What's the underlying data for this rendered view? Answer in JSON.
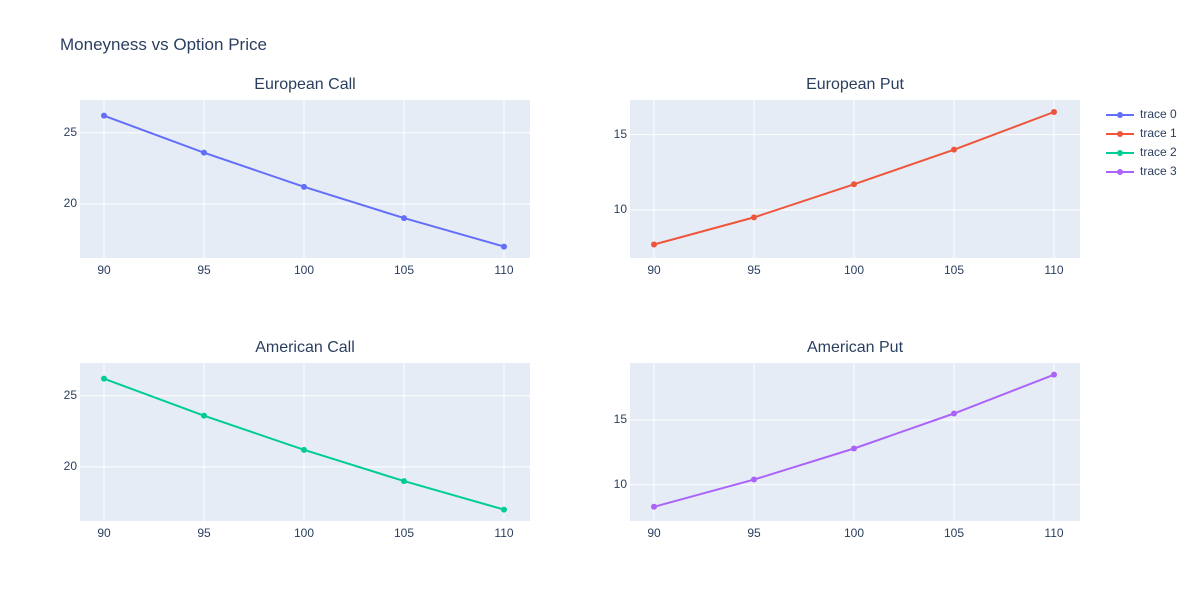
{
  "chart_data": {
    "title": "Moneyness vs Option Price",
    "type": "line",
    "legend_position": "top-right",
    "grid": true,
    "legend": [
      {
        "name": "trace 0",
        "color": "#636efa"
      },
      {
        "name": "trace 1",
        "color": "#ef553b"
      },
      {
        "name": "trace 2",
        "color": "#00cc96"
      },
      {
        "name": "trace 3",
        "color": "#ab63fa"
      }
    ],
    "subplots": [
      {
        "title": "European Call",
        "series": [
          {
            "name": "trace 0",
            "color": "#636efa",
            "x": [
              90,
              95,
              100,
              105,
              110
            ],
            "y": [
              26.2,
              23.6,
              21.2,
              19.0,
              17.0
            ]
          }
        ],
        "xlim": [
          88.8,
          111.3
        ],
        "ylim": [
          16.2,
          27.3
        ],
        "xticks": [
          90,
          95,
          100,
          105,
          110
        ],
        "yticks": [
          20,
          25
        ]
      },
      {
        "title": "European Put",
        "series": [
          {
            "name": "trace 1",
            "color": "#ef553b",
            "x": [
              90,
              95,
              100,
              105,
              110
            ],
            "y": [
              7.7,
              9.5,
              11.7,
              14.0,
              16.5
            ]
          }
        ],
        "xlim": [
          88.8,
          111.3
        ],
        "ylim": [
          6.8,
          17.3
        ],
        "xticks": [
          90,
          95,
          100,
          105,
          110
        ],
        "yticks": [
          10,
          15
        ]
      },
      {
        "title": "American Call",
        "series": [
          {
            "name": "trace 2",
            "color": "#00cc96",
            "x": [
              90,
              95,
              100,
              105,
              110
            ],
            "y": [
              26.2,
              23.6,
              21.2,
              19.0,
              17.0
            ]
          }
        ],
        "xlim": [
          88.8,
          111.3
        ],
        "ylim": [
          16.2,
          27.3
        ],
        "xticks": [
          90,
          95,
          100,
          105,
          110
        ],
        "yticks": [
          20,
          25
        ]
      },
      {
        "title": "American Put",
        "series": [
          {
            "name": "trace 3",
            "color": "#ab63fa",
            "x": [
              90,
              95,
              100,
              105,
              110
            ],
            "y": [
              8.3,
              10.4,
              12.8,
              15.5,
              18.5
            ]
          }
        ],
        "xlim": [
          88.8,
          111.3
        ],
        "ylim": [
          7.2,
          19.4
        ],
        "xticks": [
          90,
          95,
          100,
          105,
          110
        ],
        "yticks": [
          10,
          15
        ]
      }
    ]
  }
}
